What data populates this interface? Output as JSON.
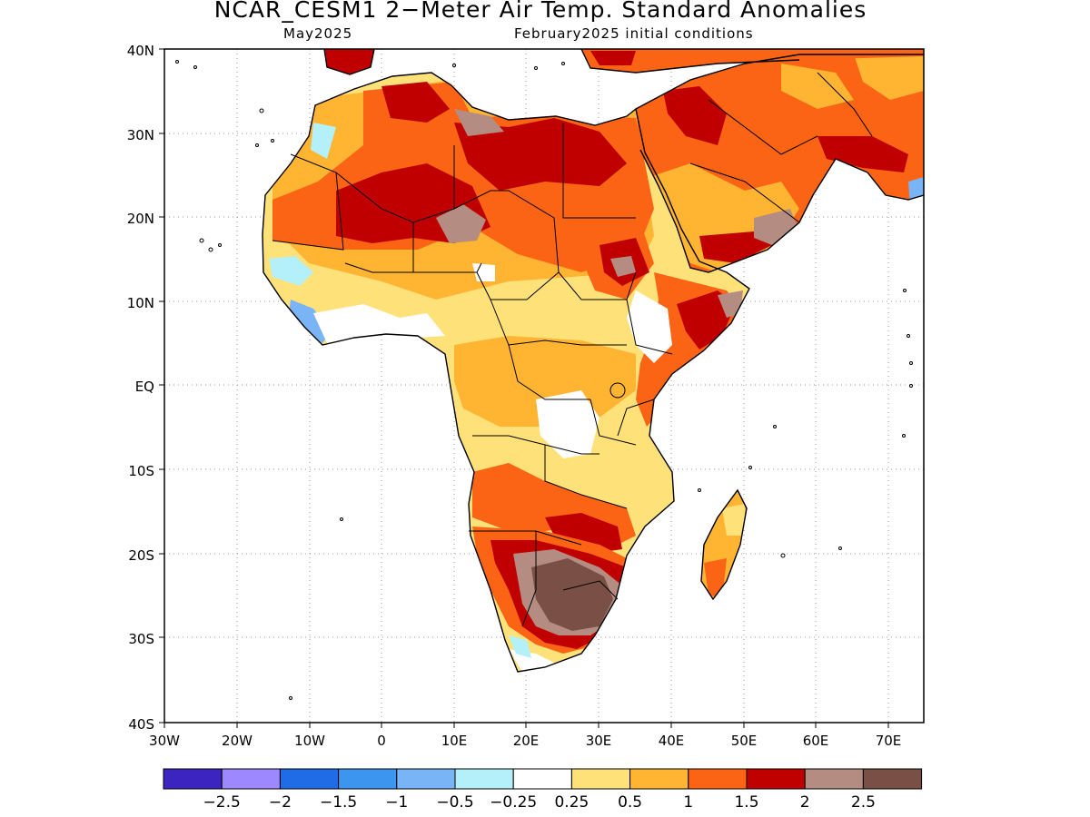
{
  "header": {
    "title": "NCAR_CESM1 2−Meter Air Temp. Standard Anomalies",
    "valid_month": "May2025",
    "init": "February2025 initial conditions"
  },
  "axes": {
    "lat_labels": [
      "40N",
      "30N",
      "20N",
      "10N",
      "EQ",
      "10S",
      "20S",
      "30S",
      "40S"
    ],
    "lon_labels": [
      "30W",
      "20W",
      "10W",
      "0",
      "10E",
      "20E",
      "30E",
      "40E",
      "50E",
      "60E",
      "70E"
    ]
  },
  "colorbar": {
    "colors": [
      "#3b24c0",
      "#9d88ff",
      "#1f6ce6",
      "#3c96f0",
      "#78b4f6",
      "#b4f0fa",
      "#ffffff",
      "#ffe17a",
      "#ffb432",
      "#fa6414",
      "#c00000",
      "#b48c82",
      "#7a5046"
    ],
    "labels": [
      "−2.5",
      "−2",
      "−1.5",
      "−1",
      "−0.5",
      "−0.25",
      "0.25",
      "0.5",
      "1",
      "1.5",
      "2",
      "2.5"
    ]
  },
  "map": {
    "colors": {
      "pale": "#ffe17a",
      "light": "#ffb432",
      "orange": "#fa6414",
      "red": "#c00000",
      "tan": "#b48c82",
      "brown": "#7a5046",
      "lblue": "#78b4f6",
      "cyan": "#b4f0fa",
      "blue": "#3c96f0"
    }
  }
}
